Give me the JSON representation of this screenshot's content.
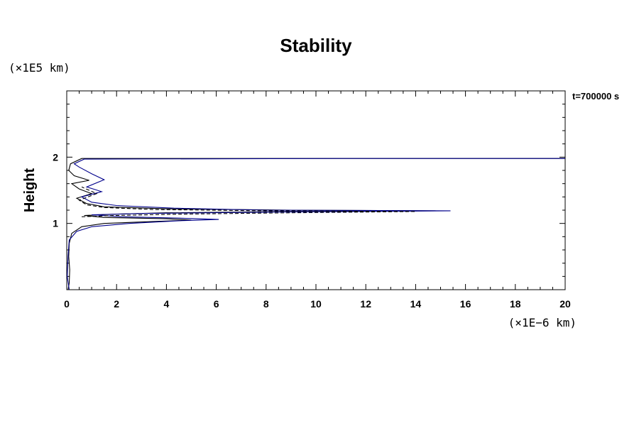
{
  "chart_data": {
    "type": "line",
    "title": "Stability",
    "ylabel": "Height",
    "y_unit_label": "(×1E5 km)",
    "x_unit_label": "(×1E−6 km)",
    "annotation": "t=700000 s",
    "xlim": [
      0,
      20
    ],
    "ylim": [
      0,
      3
    ],
    "x_ticks": [
      0,
      2,
      4,
      6,
      8,
      10,
      12,
      14,
      16,
      18,
      20
    ],
    "y_ticks": [
      1,
      2
    ],
    "grid": false,
    "series": [
      {
        "color": "#000000",
        "style": "solid",
        "points": [
          [
            0.05,
            0.0
          ],
          [
            0.1,
            0.1
          ],
          [
            0.12,
            0.3
          ],
          [
            0.08,
            0.5
          ],
          [
            0.1,
            0.7
          ],
          [
            0.2,
            0.85
          ],
          [
            0.6,
            0.95
          ],
          [
            1.5,
            1.0
          ],
          [
            3.5,
            1.03
          ],
          [
            5.0,
            1.05
          ],
          [
            4.0,
            1.07
          ],
          [
            1.5,
            1.09
          ],
          [
            0.7,
            1.12
          ],
          [
            2.0,
            1.14
          ],
          [
            4.0,
            1.16
          ],
          [
            9.0,
            1.18
          ],
          [
            14.8,
            1.19
          ],
          [
            9.0,
            1.2
          ],
          [
            4.0,
            1.22
          ],
          [
            1.5,
            1.25
          ],
          [
            0.8,
            1.3
          ],
          [
            0.4,
            1.38
          ],
          [
            1.0,
            1.45
          ],
          [
            0.5,
            1.52
          ],
          [
            0.2,
            1.6
          ],
          [
            0.9,
            1.65
          ],
          [
            0.3,
            1.72
          ],
          [
            0.08,
            1.8
          ],
          [
            0.15,
            1.9
          ],
          [
            0.6,
            1.98
          ],
          [
            10.0,
            1.98
          ],
          [
            20.0,
            1.98
          ]
        ]
      },
      {
        "color": "#00008b",
        "style": "solid",
        "points": [
          [
            0.1,
            0.0
          ],
          [
            0.02,
            0.2
          ],
          [
            0.05,
            0.5
          ],
          [
            0.1,
            0.75
          ],
          [
            0.4,
            0.88
          ],
          [
            1.0,
            0.95
          ],
          [
            2.5,
            1.0
          ],
          [
            4.5,
            1.04
          ],
          [
            6.1,
            1.06
          ],
          [
            4.5,
            1.08
          ],
          [
            2.2,
            1.1
          ],
          [
            1.0,
            1.13
          ],
          [
            3.0,
            1.15
          ],
          [
            8.0,
            1.17
          ],
          [
            15.4,
            1.19
          ],
          [
            8.0,
            1.2
          ],
          [
            4.3,
            1.23
          ],
          [
            2.0,
            1.27
          ],
          [
            1.0,
            1.32
          ],
          [
            0.6,
            1.4
          ],
          [
            1.4,
            1.48
          ],
          [
            0.8,
            1.55
          ],
          [
            1.5,
            1.66
          ],
          [
            1.0,
            1.75
          ],
          [
            0.5,
            1.85
          ],
          [
            0.3,
            1.9
          ],
          [
            0.7,
            1.97
          ],
          [
            11.0,
            1.98
          ],
          [
            20.0,
            1.98
          ]
        ]
      },
      {
        "color": "#000000",
        "style": "dashed",
        "points": [
          [
            0.6,
            1.1
          ],
          [
            2.0,
            1.12
          ],
          [
            4.5,
            1.14
          ],
          [
            9.0,
            1.16
          ],
          [
            14.0,
            1.18
          ],
          [
            8.0,
            1.19
          ],
          [
            3.5,
            1.21
          ],
          [
            1.5,
            1.24
          ],
          [
            0.8,
            1.28
          ],
          [
            0.5,
            1.35
          ],
          [
            1.2,
            1.45
          ],
          [
            0.6,
            1.55
          ]
        ]
      }
    ]
  }
}
